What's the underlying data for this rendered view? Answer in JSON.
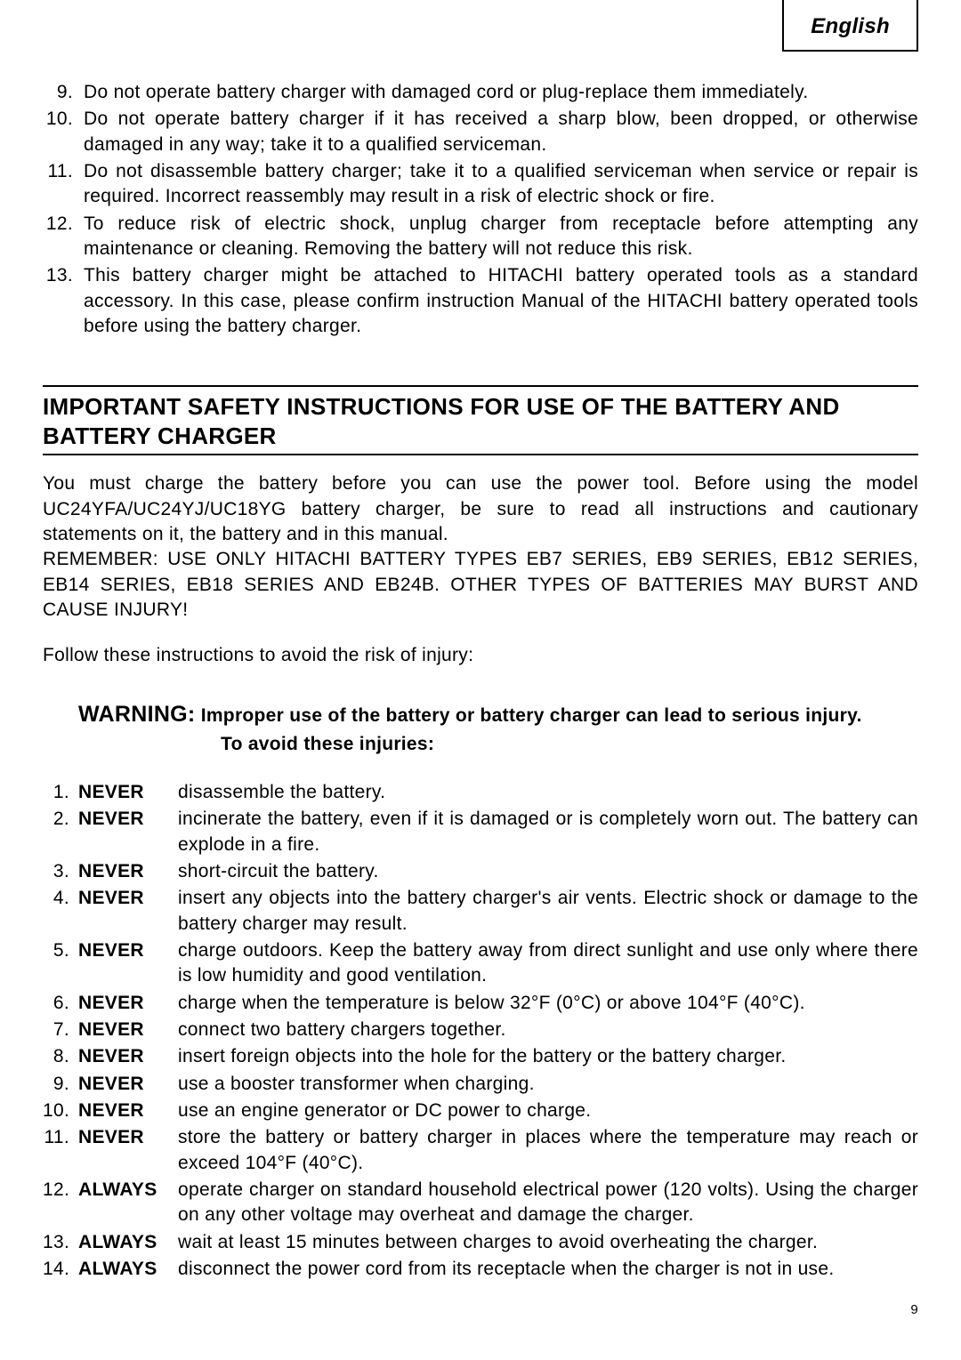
{
  "lang_label": "English",
  "top_list": [
    {
      "n": "9.",
      "t": "Do not operate battery charger with damaged cord or plug-replace them immediately."
    },
    {
      "n": "10.",
      "t": "Do not operate battery charger if it has received a sharp blow, been dropped, or otherwise damaged in any way; take it to a qualified serviceman."
    },
    {
      "n": "11.",
      "t": "Do not disassemble battery charger; take it to a qualified serviceman when service or repair is required. Incorrect reassembly may result in a risk of electric shock or fire."
    },
    {
      "n": "12.",
      "t": "To reduce risk of electric shock, unplug charger from receptacle before attempting any maintenance or cleaning. Removing the battery will not reduce this risk."
    },
    {
      "n": "13.",
      "t": "This battery charger might be attached to HITACHI battery operated tools as a standard accessory. In this case, please confirm instruction Manual of the HITACHI battery operated tools before using the battery charger."
    }
  ],
  "section_title": "IMPORTANT SAFETY INSTRUCTIONS FOR USE OF THE BATTERY AND BATTERY CHARGER",
  "intro_p1": "You must charge the battery before you can use the power tool. Before using the model UC24YFA/UC24YJ/UC18YG battery charger, be sure to read all instructions and cautionary statements on it, the battery and in this manual.",
  "intro_p2": "REMEMBER: USE ONLY HITACHI BATTERY TYPES EB7 SERIES, EB9 SERIES, EB12 SERIES, EB14 SERIES, EB18 SERIES AND EB24B. OTHER TYPES OF BATTERIES MAY BURST AND CAUSE INJURY!",
  "follow_text": "Follow these instructions to avoid the risk of injury:",
  "warning_label": "WARNING:",
  "warning_line1": "Improper use of the battery or battery charger can lead to serious injury.",
  "warning_line2": "To avoid these injuries:",
  "rules": [
    {
      "n": "1.",
      "kw": "NEVER",
      "t": "disassemble the battery."
    },
    {
      "n": "2.",
      "kw": "NEVER",
      "t": "incinerate the battery, even if it is damaged or is completely worn out. The battery can explode in a fire."
    },
    {
      "n": "3.",
      "kw": "NEVER",
      "t": "short-circuit the battery."
    },
    {
      "n": "4.",
      "kw": "NEVER",
      "t": "insert any objects into the battery charger's air vents. Electric shock or damage to the battery charger may result."
    },
    {
      "n": "5.",
      "kw": "NEVER",
      "t": "charge outdoors. Keep the battery away from direct sunlight and use only where there is low humidity and good ventilation."
    },
    {
      "n": "6.",
      "kw": "NEVER",
      "t": "charge when the temperature is below 32°F (0°C) or above 104°F (40°C)."
    },
    {
      "n": "7.",
      "kw": "NEVER",
      "t": "connect two battery chargers together."
    },
    {
      "n": "8.",
      "kw": "NEVER",
      "t": "insert foreign objects into the hole for the battery or the battery charger."
    },
    {
      "n": "9.",
      "kw": "NEVER",
      "t": "use a booster transformer when charging."
    },
    {
      "n": "10.",
      "kw": "NEVER",
      "t": "use an engine generator or DC power to charge."
    },
    {
      "n": "11.",
      "kw": "NEVER",
      "t": "store the battery or battery charger in places where the temperature may reach or exceed 104°F (40°C)."
    },
    {
      "n": "12.",
      "kw": "ALWAYS",
      "t": "operate charger on standard household electrical power (120 volts). Using the charger on any other voltage may overheat and damage the charger."
    },
    {
      "n": "13.",
      "kw": "ALWAYS",
      "t": "wait at least 15 minutes between charges to avoid overheating the charger."
    },
    {
      "n": "14.",
      "kw": "ALWAYS",
      "t": "disconnect the power cord from its receptacle when the charger is not in use."
    }
  ],
  "page_number": "9"
}
